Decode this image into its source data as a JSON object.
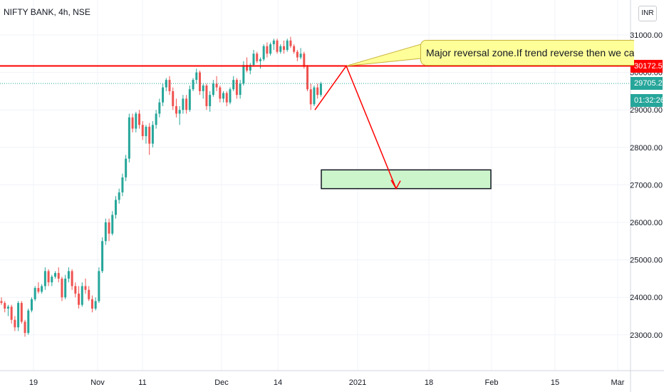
{
  "header": {
    "symbol": "NIFTY BANK, 4h, NSE"
  },
  "currency": "INR",
  "price_tags": {
    "horizontal_line": "30172.50",
    "last_price": "29705.25",
    "countdown": "01:32:26"
  },
  "annotation": {
    "text": "Major reversal zone.If trend reverse then we can"
  },
  "colors": {
    "up": "#26a69a",
    "down": "#ef5350",
    "line": "#ff0000",
    "zone_fill": "#ccf5cc",
    "zone_border": "#131722",
    "callout_fill": "#ffff99",
    "last_price_tag": "#26a69a",
    "grid": "#f0f3fa"
  },
  "chart_data": {
    "type": "candlestick",
    "y_ticks": [
      23000,
      24000,
      25000,
      26000,
      27000,
      28000,
      29000,
      30000,
      31000
    ],
    "y_tick_labels": [
      "23000.00",
      "24000.00",
      "25000.00",
      "26000.00",
      "27000.00",
      "28000.00",
      "29000.00",
      "30000.00",
      "31000.00"
    ],
    "x_tick_labels": [
      "19",
      "Nov",
      "11",
      "Dec",
      "14",
      "2021",
      "18",
      "Feb",
      "15",
      "Mar"
    ],
    "ylim": [
      22200,
      31600
    ],
    "grid": true,
    "horizontal_line": 30172.5,
    "last_price": 29705.25,
    "target_zone": {
      "low": 26900,
      "high": 27400
    },
    "projection": [
      29000,
      30172.5,
      26900
    ],
    "candles": [
      [
        23900,
        24000,
        23800,
        23850
      ],
      [
        23850,
        23900,
        23600,
        23700
      ],
      [
        23700,
        23800,
        23500,
        23750
      ],
      [
        23750,
        23800,
        23300,
        23400
      ],
      [
        23400,
        23500,
        23100,
        23200
      ],
      [
        23200,
        23900,
        23100,
        23850
      ],
      [
        23850,
        23900,
        23300,
        23350
      ],
      [
        23350,
        23400,
        22950,
        23050
      ],
      [
        23050,
        23700,
        23000,
        23650
      ],
      [
        23650,
        24000,
        23600,
        23950
      ],
      [
        23950,
        24300,
        23900,
        24250
      ],
      [
        24250,
        24400,
        24100,
        24150
      ],
      [
        24150,
        24350,
        24100,
        24300
      ],
      [
        24300,
        24800,
        24200,
        24700
      ],
      [
        24700,
        24750,
        24300,
        24400
      ],
      [
        24400,
        24600,
        24300,
        24550
      ],
      [
        24550,
        24700,
        24500,
        24650
      ],
      [
        24650,
        24800,
        24400,
        24500
      ],
      [
        24500,
        24550,
        23900,
        24000
      ],
      [
        24000,
        24600,
        23950,
        24500
      ],
      [
        24500,
        24800,
        24400,
        24700
      ],
      [
        24700,
        24750,
        24200,
        24300
      ],
      [
        24300,
        24400,
        24000,
        24100
      ],
      [
        24100,
        24300,
        23700,
        23800
      ],
      [
        23800,
        24400,
        23750,
        24300
      ],
      [
        24300,
        24500,
        24100,
        24200
      ],
      [
        24200,
        24300,
        23900,
        23950
      ],
      [
        23950,
        24050,
        23600,
        23700
      ],
      [
        23700,
        24000,
        23650,
        23900
      ],
      [
        23900,
        24800,
        23850,
        24700
      ],
      [
        24700,
        25600,
        24650,
        25500
      ],
      [
        25500,
        26100,
        25400,
        26000
      ],
      [
        26000,
        26100,
        25500,
        25700
      ],
      [
        25700,
        26300,
        25650,
        26200
      ],
      [
        26200,
        26700,
        26100,
        26600
      ],
      [
        26600,
        26900,
        26500,
        26800
      ],
      [
        26800,
        27300,
        26700,
        27200
      ],
      [
        27200,
        27800,
        27100,
        27700
      ],
      [
        27700,
        28900,
        27600,
        28800
      ],
      [
        28800,
        28900,
        28400,
        28500
      ],
      [
        28500,
        28950,
        28400,
        28900
      ],
      [
        28900,
        29000,
        28500,
        28600
      ],
      [
        28600,
        28700,
        28200,
        28300
      ],
      [
        28300,
        28600,
        28100,
        28550
      ],
      [
        28550,
        28650,
        27800,
        28100
      ],
      [
        28100,
        28700,
        28000,
        28600
      ],
      [
        28600,
        29000,
        28500,
        28900
      ],
      [
        28900,
        29300,
        28800,
        29200
      ],
      [
        29200,
        29700,
        29100,
        29600
      ],
      [
        29600,
        29850,
        29500,
        29800
      ],
      [
        29800,
        29900,
        29400,
        29500
      ],
      [
        29500,
        29600,
        29000,
        29100
      ],
      [
        29100,
        29300,
        28800,
        28900
      ],
      [
        28900,
        29100,
        28600,
        29000
      ],
      [
        29000,
        29400,
        28900,
        29300
      ],
      [
        29300,
        29400,
        28900,
        29000
      ],
      [
        29000,
        29650,
        28950,
        29550
      ],
      [
        29550,
        29850,
        29500,
        29800
      ],
      [
        29800,
        30100,
        29700,
        30000
      ],
      [
        30000,
        30050,
        29400,
        29500
      ],
      [
        29500,
        29700,
        29300,
        29650
      ],
      [
        29650,
        29700,
        29000,
        29100
      ],
      [
        29100,
        29500,
        28950,
        29400
      ],
      [
        29400,
        29800,
        29350,
        29700
      ],
      [
        29700,
        29900,
        29500,
        29600
      ],
      [
        29600,
        29650,
        29200,
        29300
      ],
      [
        29300,
        29500,
        29200,
        29450
      ],
      [
        29450,
        29500,
        29100,
        29200
      ],
      [
        29200,
        29600,
        29150,
        29550
      ],
      [
        29550,
        29900,
        29500,
        29800
      ],
      [
        29800,
        29850,
        29300,
        29400
      ],
      [
        29400,
        29800,
        29300,
        29700
      ],
      [
        29700,
        30300,
        29650,
        30200
      ],
      [
        30200,
        30400,
        30000,
        30050
      ],
      [
        30050,
        30250,
        29950,
        30200
      ],
      [
        30200,
        30600,
        30150,
        30500
      ],
      [
        30500,
        30550,
        30250,
        30300
      ],
      [
        30300,
        30400,
        30100,
        30350
      ],
      [
        30350,
        30750,
        30300,
        30700
      ],
      [
        30700,
        30800,
        30400,
        30500
      ],
      [
        30500,
        30800,
        30450,
        30750
      ],
      [
        30750,
        30900,
        30600,
        30850
      ],
      [
        30850,
        30900,
        30500,
        30550
      ],
      [
        30550,
        30750,
        30500,
        30700
      ],
      [
        30700,
        30850,
        30500,
        30600
      ],
      [
        30600,
        30900,
        30550,
        30850
      ],
      [
        30850,
        30950,
        30650,
        30700
      ],
      [
        30700,
        30750,
        30500,
        30550
      ],
      [
        30550,
        30600,
        30300,
        30400
      ],
      [
        30400,
        30650,
        30350,
        30500
      ],
      [
        30500,
        30550,
        30100,
        30150
      ],
      [
        30150,
        30200,
        29500,
        29550
      ],
      [
        29550,
        29700,
        29000,
        29150
      ],
      [
        29150,
        29650,
        29100,
        29600
      ],
      [
        29600,
        29700,
        29300,
        29400
      ],
      [
        29400,
        29750,
        29350,
        29705
      ]
    ]
  }
}
